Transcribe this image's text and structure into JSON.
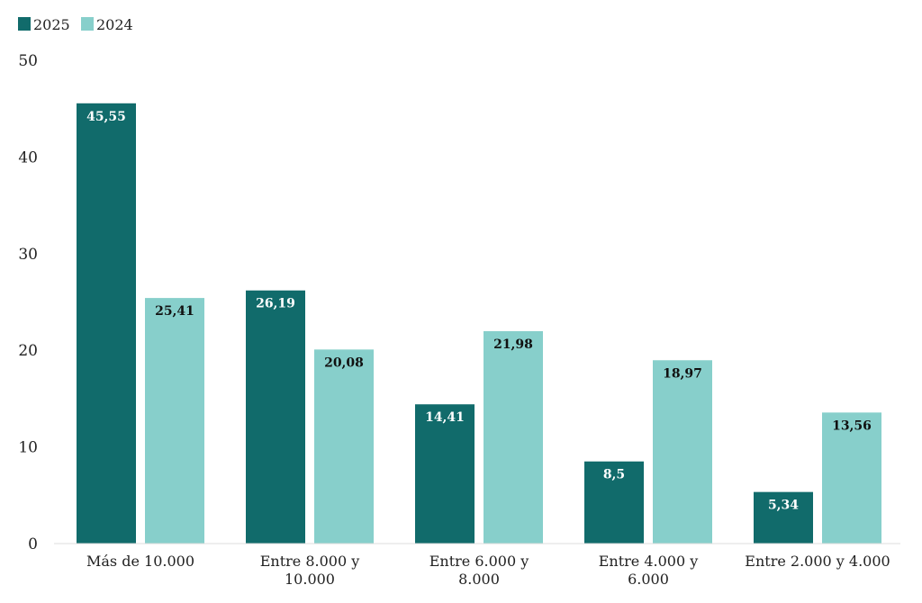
{
  "chart_data": {
    "type": "bar",
    "categories": [
      [
        "Más de 10.000"
      ],
      [
        "Entre 8.000 y",
        "10.000"
      ],
      [
        "Entre 6.000 y",
        "8.000"
      ],
      [
        "Entre 4.000 y",
        "6.000"
      ],
      [
        "Entre 2.000 y 4.000"
      ]
    ],
    "series": [
      {
        "name": "2025",
        "color": "#116b6b",
        "label_color": "#ffffff",
        "values": [
          45.55,
          26.19,
          14.41,
          8.5,
          5.34
        ],
        "labels": [
          "45,55",
          "26,19",
          "14,41",
          "8,5",
          "5,34"
        ]
      },
      {
        "name": "2024",
        "color": "#87cfcb",
        "label_color": "#111111",
        "values": [
          25.41,
          20.08,
          21.98,
          18.97,
          13.56
        ],
        "labels": [
          "25,41",
          "20,08",
          "21,98",
          "18,97",
          "13,56"
        ]
      }
    ],
    "ylim": [
      0,
      50
    ],
    "yticks": [
      0,
      10,
      20,
      30,
      40,
      50
    ],
    "grid": false,
    "legend_position": "top-left"
  }
}
